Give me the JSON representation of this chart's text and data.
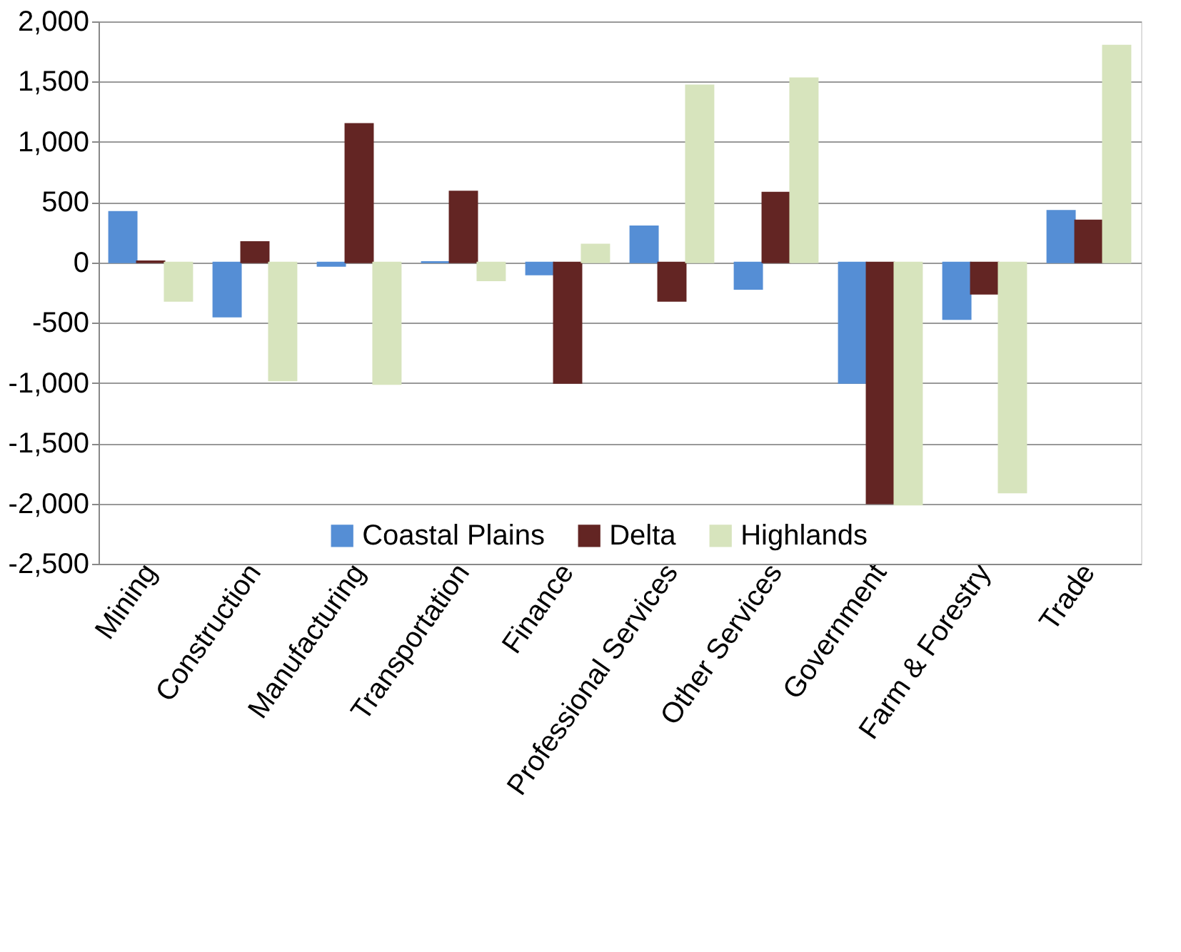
{
  "chart_data": {
    "type": "bar",
    "categories": [
      "Mining",
      "Construction",
      "Manufacturing",
      "Transportation",
      "Finance",
      "Professional Services",
      "Other Services",
      "Government",
      "Farm & Forestry",
      "Trade"
    ],
    "series": [
      {
        "name": "Coastal Plains",
        "color": "#558ed5",
        "values": [
          420,
          -450,
          -30,
          5,
          -100,
          300,
          -220,
          -1000,
          -470,
          430
        ]
      },
      {
        "name": "Delta",
        "color": "#632523",
        "values": [
          10,
          170,
          1150,
          590,
          -1000,
          -320,
          580,
          -2000,
          -260,
          350
        ]
      },
      {
        "name": "Highlands",
        "color": "#d7e4bd",
        "values": [
          -320,
          -980,
          -1010,
          -150,
          150,
          1470,
          1530,
          -2010,
          -1910,
          1800
        ]
      }
    ],
    "ylim": [
      -2500,
      2000
    ],
    "yticks": [
      {
        "value": -2500,
        "label": "-2,500"
      },
      {
        "value": -2000,
        "label": "-2,000"
      },
      {
        "value": -1500,
        "label": "-1,500"
      },
      {
        "value": -1000,
        "label": "-1,000"
      },
      {
        "value": -500,
        "label": "-500"
      },
      0,
      {
        "value": 500,
        "label": "500"
      },
      {
        "value": 1000,
        "label": "1,000"
      },
      {
        "value": 1500,
        "label": "1,500"
      },
      {
        "value": 2000,
        "label": "2,000"
      }
    ],
    "grid": "y",
    "legend": "bottom"
  }
}
